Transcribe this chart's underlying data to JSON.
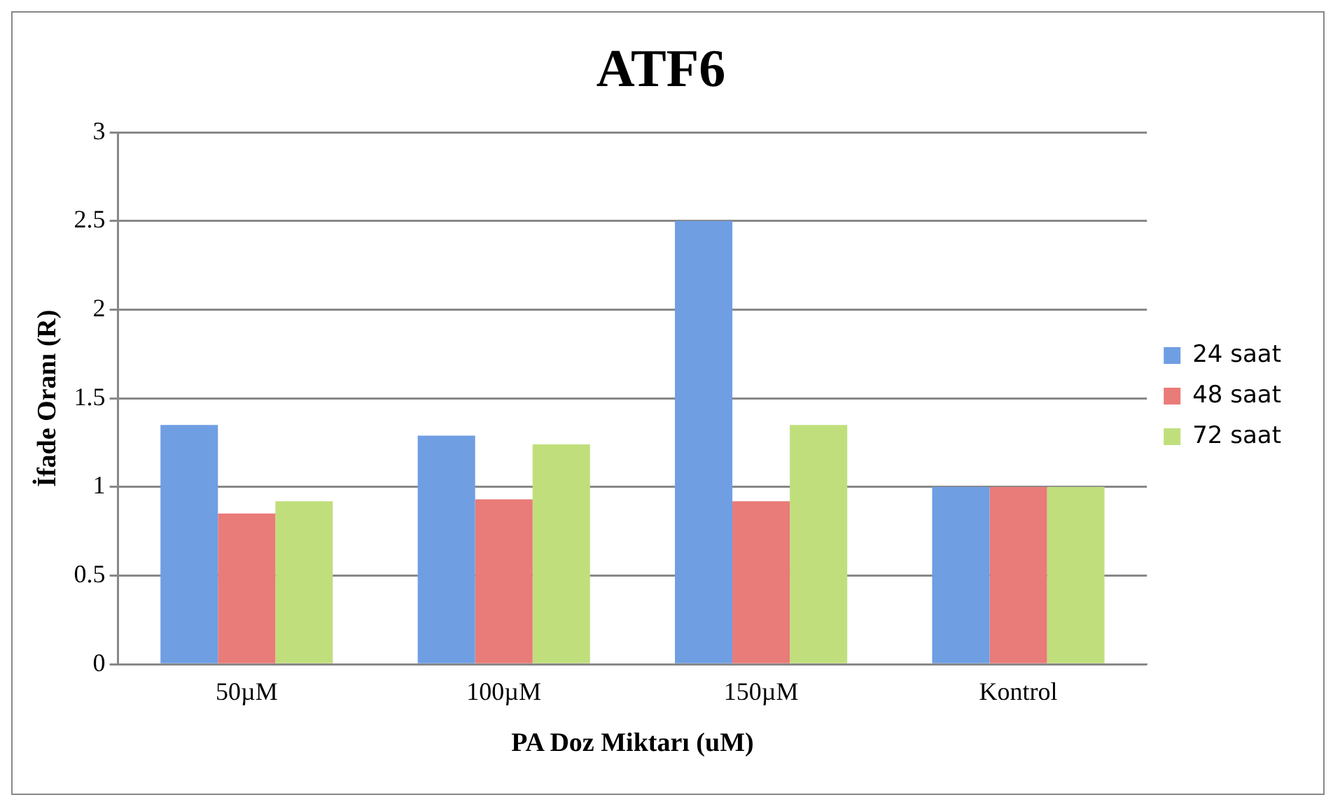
{
  "chart_data": {
    "type": "bar",
    "title": "ATF6",
    "xlabel": "PA Doz Miktarı (uM)",
    "ylabel": "İfade Oranı (R)",
    "categories": [
      "50µM",
      "100µM",
      "150µM",
      "Kontrol"
    ],
    "series": [
      {
        "name": "24 saat",
        "color": "#6f9ee3",
        "values": [
          1.35,
          1.29,
          2.5,
          1
        ]
      },
      {
        "name": "48 saat",
        "color": "#e97b78",
        "values": [
          0.85,
          0.93,
          0.92,
          1
        ]
      },
      {
        "name": "72 saat",
        "color": "#c0df7c",
        "values": [
          0.92,
          1.24,
          1.35,
          1
        ]
      }
    ],
    "ylim": [
      0,
      3
    ],
    "yticks": [
      0,
      0.5,
      1,
      1.5,
      2,
      2.5,
      3
    ],
    "grid": "y",
    "legend": "right"
  }
}
